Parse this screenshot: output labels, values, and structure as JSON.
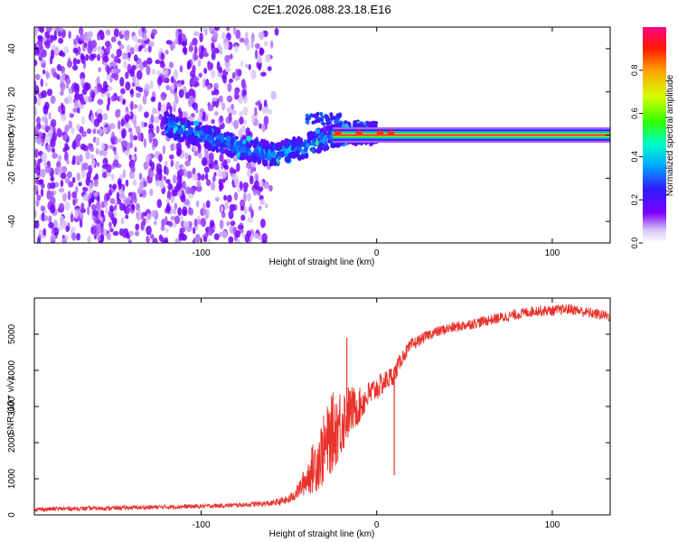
{
  "figure": {
    "title": "C2E1.2026.088.23.18.E16"
  },
  "colors": {
    "axis": "#000000",
    "snr_line": "#e8322b",
    "background": "#ffffff"
  },
  "chart_data": [
    {
      "type": "heatmap",
      "name": "spectrogram",
      "xlabel": "Height of straight line (km)",
      "ylabel": "Frequency (Hz)",
      "xlim": [
        -195,
        133
      ],
      "ylim": [
        -50,
        50
      ],
      "x_ticks": [
        -100,
        0,
        100
      ],
      "x_tick_labels": [
        "-100",
        "0",
        "100"
      ],
      "y_ticks": [
        -40,
        -20,
        0,
        20,
        40
      ],
      "y_tick_labels": [
        "-40",
        "-20",
        "0",
        "20",
        "40"
      ],
      "colorbar": {
        "label": "Normalized spectral amplitude",
        "range": [
          0,
          1
        ],
        "ticks": [
          0.0,
          0.2,
          0.4,
          0.6,
          0.8
        ],
        "tick_labels": [
          "0.0",
          "0.2",
          "0.4",
          "0.6",
          "0.8"
        ],
        "colormap": "rainbow (white-violet-blue-cyan-green-yellow-orange-red-magenta)"
      },
      "features": [
        {
          "name": "broadband noise",
          "x_range": [
            -195,
            -55
          ],
          "freq_range": [
            -50,
            50
          ],
          "amplitude": 0.1
        },
        {
          "name": "drifting carrier",
          "x_points": [
            -120,
            -100,
            -80,
            -60,
            -40,
            -20,
            0
          ],
          "freq_points": [
            5,
            0,
            -5,
            -9,
            -5,
            1,
            1
          ],
          "amplitude": 0.3
        },
        {
          "name": "stable carrier",
          "x_range": [
            0,
            133
          ],
          "freq": 0,
          "amplitude": 0.95
        }
      ]
    },
    {
      "type": "line",
      "name": "snr",
      "xlabel": "Height of straight line (km)",
      "ylabel": "SNR (10 * v/v)",
      "xlim": [
        -195,
        133
      ],
      "ylim": [
        0,
        6000
      ],
      "x_ticks": [
        -100,
        0,
        100
      ],
      "x_tick_labels": [
        "-100",
        "0",
        "100"
      ],
      "y_ticks": [
        0,
        1000,
        2000,
        3000,
        4000,
        5000
      ],
      "y_tick_labels": [
        "0",
        "1000",
        "2000",
        "3000",
        "4000",
        "5000"
      ],
      "series": [
        {
          "name": "SNR",
          "x": [
            -195,
            -180,
            -160,
            -140,
            -120,
            -100,
            -80,
            -60,
            -50,
            -45,
            -40,
            -35,
            -30,
            -25,
            -20,
            -15,
            -10,
            -5,
            0,
            5,
            10,
            15,
            20,
            25,
            30,
            40,
            50,
            60,
            70,
            80,
            90,
            100,
            110,
            120,
            133
          ],
          "y": [
            150,
            170,
            180,
            200,
            220,
            240,
            270,
            320,
            420,
            650,
            1000,
            1400,
            1800,
            2300,
            2600,
            2900,
            3000,
            3300,
            3500,
            3700,
            3900,
            4400,
            4700,
            4850,
            5000,
            5150,
            5250,
            5350,
            5450,
            5550,
            5650,
            5650,
            5700,
            5600,
            5500
          ],
          "noise": [
            60,
            60,
            60,
            60,
            60,
            60,
            60,
            80,
            130,
            200,
            450,
            800,
            1000,
            1100,
            1000,
            700,
            500,
            400,
            350,
            300,
            280,
            200,
            200,
            150,
            150,
            150,
            150,
            150,
            150,
            150,
            150,
            150,
            150,
            150,
            150
          ]
        }
      ],
      "annotations": [
        {
          "x": -17,
          "y": 4900,
          "label": "spike peak"
        },
        {
          "x": 10,
          "y": 1100,
          "label": "dip"
        }
      ]
    }
  ]
}
